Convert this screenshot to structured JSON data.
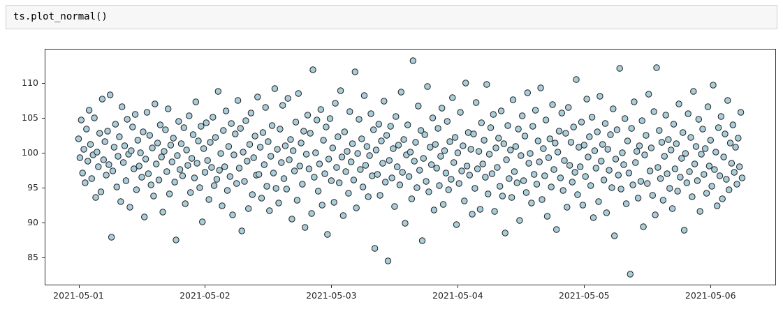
{
  "notebook": {
    "code_cell": {
      "source": "ts.plot_normal()"
    }
  },
  "style": {
    "point_fill": "#a9cdda",
    "point_edge": "#1f1f1f",
    "cell_bg": "#f7f7f7",
    "cell_border": "#cfcfcf",
    "spine_color": "#2e2e2e"
  },
  "chart_data": {
    "type": "scatter",
    "title": "",
    "xlabel": "",
    "ylabel": "",
    "legend": false,
    "grid": false,
    "x_axis": {
      "start": "2021-05-01 00:00",
      "end": "2021-05-06 06:00",
      "interval_minutes": 15,
      "tick_labels": [
        "2021-05-01",
        "2021-05-02",
        "2021-05-03",
        "2021-05-04",
        "2021-05-05",
        "2021-05-06"
      ],
      "tick_day_offsets": [
        0,
        1,
        2,
        3,
        4,
        5
      ],
      "xlim_days": [
        -0.2625,
        5.5125
      ]
    },
    "y_axis": {
      "ticks": [
        85,
        90,
        95,
        100,
        105,
        110
      ],
      "ylim": [
        81.2,
        114.9
      ]
    },
    "n_points": 505,
    "series": [
      {
        "name": "value",
        "marker": "circle",
        "y": [
          102.1,
          99.4,
          104.8,
          97.2,
          100.6,
          95.8,
          103.5,
          98.9,
          106.2,
          101.3,
          96.4,
          99.8,
          105.1,
          93.7,
          100.2,
          98.1,
          102.9,
          94.5,
          107.8,
          99.1,
          101.7,
          96.9,
          103.2,
          98.4,
          108.4,
          88.0,
          97.5,
          100.9,
          104.2,
          95.2,
          99.6,
          102.4,
          93.1,
          106.7,
          98.7,
          101.1,
          96.1,
          104.9,
          99.9,
          92.3,
          100.4,
          103.8,
          97.8,
          105.6,
          94.8,
          101.9,
          98.2,
          100.1,
          96.6,
          103.1,
          90.9,
          99.2,
          105.9,
          97.1,
          102.6,
          95.5,
          100.8,
          93.9,
          107.1,
          98.5,
          101.5,
          96.2,
          104.1,
          99.5,
          91.6,
          100.3,
          103.4,
          97.4,
          106.4,
          94.2,
          101.2,
          98.8,
          102.2,
          95.9,
          87.6,
          99.7,
          104.6,
          97.7,
          101.4,
          96.8,
          103.7,
          92.8,
          100.5,
          98.3,
          105.4,
          94.4,
          99.3,
          102.7,
          96.5,
          107.4,
          98.6,
          101.8,
          95.1,
          103.9,
          90.2,
          100.7,
          97.3,
          104.4,
          99.0,
          93.4,
          101.6,
          98.0,
          105.2,
          95.4,
          102.3,
          96.3,
          108.9,
          97.6,
          100.0,
          92.5,
          103.3,
          98.1,
          106.1,
          94.7,
          101.0,
          96.7,
          104.3,
          91.2,
          99.8,
          102.8,
          95.7,
          107.6,
          97.9,
          103.6,
          88.9,
          100.2,
          96.0,
          104.7,
          98.9,
          92.1,
          101.3,
          105.8,
          94.1,
          99.4,
          102.5,
          96.9,
          108.1,
          97.0,
          100.9,
          93.6,
          103.0,
          98.4,
          106.6,
          95.3,
          101.7,
          91.8,
          99.6,
          104.0,
          97.2,
          109.3,
          95.0,
          100.6,
          92.9,
          103.5,
          98.7,
          106.9,
          96.4,
          101.1,
          94.9,
          107.9,
          99.1,
          102.0,
          90.6,
          100.4,
          97.5,
          104.5,
          93.3,
          108.6,
          98.2,
          101.5,
          95.6,
          103.2,
          89.4,
          99.9,
          105.5,
          97.8,
          102.9,
          91.4,
          112.0,
          96.6,
          100.1,
          104.8,
          94.6,
          98.5,
          106.3,
          92.6,
          101.9,
          97.1,
          103.8,
          88.4,
          99.2,
          105.0,
          96.1,
          100.8,
          93.0,
          107.2,
          98.0,
          102.4,
          95.8,
          109.0,
          99.5,
          91.1,
          103.1,
          97.4,
          100.3,
          94.3,
          106.0,
          98.8,
          101.4,
          96.2,
          111.7,
          92.2,
          100.0,
          104.9,
          97.7,
          102.1,
          95.2,
          108.3,
          98.3,
          101.0,
          93.8,
          99.7,
          105.7,
          96.8,
          103.4,
          86.4,
          100.5,
          97.0,
          104.2,
          94.0,
          101.8,
          98.6,
          107.5,
          95.9,
          102.6,
          84.6,
          99.0,
          103.9,
          96.5,
          100.7,
          92.4,
          105.3,
          98.1,
          101.2,
          95.5,
          108.8,
          97.3,
          102.0,
          90.0,
          99.8,
          104.1,
          96.7,
          100.2,
          93.5,
          113.3,
          98.9,
          101.6,
          95.1,
          106.8,
          97.6,
          103.3,
          87.5,
          99.3,
          102.7,
          96.0,
          109.6,
          94.5,
          100.9,
          98.4,
          105.1,
          91.9,
          101.3,
          97.9,
          103.6,
          95.4,
          99.6,
          106.5,
          92.7,
          100.4,
          97.2,
          104.6,
          94.8,
          101.7,
          96.3,
          108.0,
          98.7,
          102.3,
          89.8,
          100.1,
          95.7,
          105.9,
          97.5,
          101.1,
          93.2,
          110.1,
          98.2,
          103.0,
          96.9,
          100.6,
          91.3,
          102.8,
          95.0,
          107.3,
          97.8,
          100.3,
          92.0,
          104.4,
          98.5,
          101.9,
          96.6,
          109.9,
          94.2,
          99.9,
          103.7,
          97.1,
          105.6,
          91.7,
          100.8,
          98.0,
          102.2,
          95.3,
          106.1,
          93.9,
          101.4,
          88.6,
          99.1,
          104.0,
          96.4,
          100.5,
          93.7,
          107.7,
          97.4,
          101.0,
          95.8,
          103.5,
          90.4,
          99.7,
          105.4,
          96.1,
          102.5,
          94.4,
          108.7,
          98.6,
          100.0,
          92.9,
          103.9,
          97.0,
          106.2,
          95.6,
          101.8,
          98.8,
          109.4,
          93.4,
          100.7,
          96.8,
          104.8,
          91.0,
          99.4,
          102.1,
          95.2,
          107.0,
          97.7,
          101.5,
          89.1,
          100.2,
          103.2,
          96.5,
          105.8,
          94.7,
          99.0,
          102.9,
          92.3,
          106.6,
          98.3,
          101.6,
          95.9,
          103.8,
          97.3,
          110.6,
          94.1,
          100.9,
          98.1,
          104.5,
          92.6,
          101.2,
          96.7,
          107.8,
          99.5,
          102.4,
          95.4,
          105.2,
          90.8,
          100.4,
          97.9,
          103.1,
          93.1,
          108.2,
          98.9,
          101.3,
          96.2,
          104.3,
          91.5,
          100.6,
          97.6,
          102.7,
          95.1,
          106.4,
          88.2,
          99.2,
          103.4,
          96.9,
          112.2,
          94.9,
          100.1,
          98.4,
          105.0,
          92.8,
          101.8,
          97.2,
          82.7,
          103.6,
          95.5,
          107.4,
          98.7,
          100.3,
          93.6,
          101.1,
          96.0,
          104.7,
          89.5,
          99.8,
          102.6,
          95.7,
          108.5,
          97.5,
          100.8,
          94.0,
          106.0,
          91.2,
          112.3,
          98.0,
          103.3,
          96.4,
          101.6,
          93.3,
          99.6,
          105.5,
          97.1,
          102.0,
          95.0,
          100.5,
          92.1,
          104.2,
          97.8,
          101.4,
          94.6,
          107.1,
          96.6,
          99.3,
          103.0,
          89.0,
          100.0,
          95.8,
          105.7,
          97.4,
          102.3,
          93.8,
          108.9,
          98.5,
          101.0,
          96.1,
          104.9,
          91.7,
          99.9,
          103.5,
          97.0,
          100.7,
          94.3,
          106.7,
          98.2,
          101.9,
          95.3,
          109.8,
          97.7,
          100.2,
          92.5,
          103.7,
          96.8,
          105.3,
          93.5,
          99.5,
          102.8,
          96.3,
          107.6,
          94.8,
          101.5,
          98.6,
          104.1,
          97.3,
          100.9,
          95.6,
          102.2,
          98.1,
          105.9,
          96.5
        ]
      }
    ]
  }
}
